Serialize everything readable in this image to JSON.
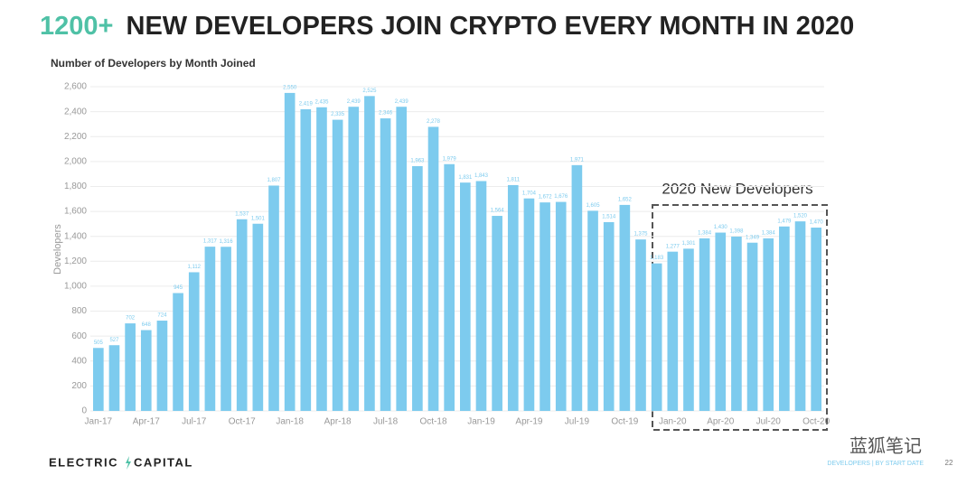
{
  "title_highlight": "1200+",
  "title": "NEW DEVELOPERS JOIN CRYPTO EVERY MONTH IN 2020",
  "chart_data": {
    "type": "bar",
    "subtitle": "Number of Developers by Month Joined",
    "y_label": "Developers",
    "annotation": "2020 New Developers",
    "color": "#7dcbee",
    "grid": true,
    "categories": [
      "Jan-17",
      null,
      null,
      "Apr-17",
      null,
      null,
      "Jul-17",
      null,
      null,
      "Oct-17",
      null,
      null,
      "Jan-18",
      null,
      null,
      "Apr-18",
      null,
      null,
      "Jul-18",
      null,
      null,
      "Oct-18",
      null,
      null,
      "Jan-19",
      null,
      null,
      "Apr-19",
      null,
      null,
      "Jul-19",
      null,
      null,
      "Oct-19",
      null,
      null,
      "Jan-20",
      null,
      null,
      "Apr-20",
      null,
      null,
      "Jul-20",
      null,
      null,
      "Oct-20"
    ],
    "values": [
      505,
      527,
      702,
      648,
      724,
      945,
      1112,
      1317,
      1316,
      1537,
      1501,
      1807,
      2550,
      2419,
      2435,
      2335,
      2439,
      2525,
      2346,
      2439,
      1963,
      2278,
      1979,
      1831,
      1843,
      1564,
      1811,
      1704,
      1672,
      1676,
      1971,
      1605,
      1514,
      1652,
      1375,
      1183,
      1277,
      1301,
      1384,
      1430,
      1398,
      1349,
      1384,
      1479,
      1520,
      1470
    ],
    "value_labels": [
      "505",
      "527",
      "702",
      "648",
      "724",
      "945",
      "1,112",
      "1,317",
      "1,316",
      "1,537",
      "1,501",
      "1,807",
      "2,550",
      "2,419",
      "2,435",
      "2,335",
      "2,439",
      "2,525",
      "2,346",
      "2,439",
      "1,963",
      "2,278",
      "1,979",
      "1,831",
      "1,843",
      "1,564",
      "1,811",
      "1,704",
      "1,672",
      "1,676",
      "1,971",
      "1,605",
      "1,514",
      "1,652",
      "1,375",
      "1,183",
      "1,277",
      "1,301",
      "1,384",
      "1,430",
      "1,398",
      "1,349",
      "1,384",
      "1,479",
      "1,520",
      "1,470"
    ],
    "ylim": [
      0,
      2600
    ],
    "yticks": [
      0,
      200,
      400,
      600,
      800,
      {
        "value": 1000,
        "label": "1,000"
      },
      {
        "value": 1200,
        "label": "1,200"
      },
      {
        "value": 1400,
        "label": "1,400"
      },
      {
        "value": 1600,
        "label": "1,600"
      },
      {
        "value": 1800,
        "label": "1,800"
      },
      {
        "value": 2000,
        "label": "2,000"
      },
      {
        "value": 2200,
        "label": "2,200"
      },
      {
        "value": 2400,
        "label": "2,400"
      },
      {
        "value": 2600,
        "label": "2,600"
      }
    ]
  },
  "footer": {
    "logo_left": "ELECTRIC",
    "logo_right": "CAPITAL",
    "source": "DEVELOPERS | BY START DATE",
    "page": "22",
    "watermark": "蓝狐笔记"
  }
}
